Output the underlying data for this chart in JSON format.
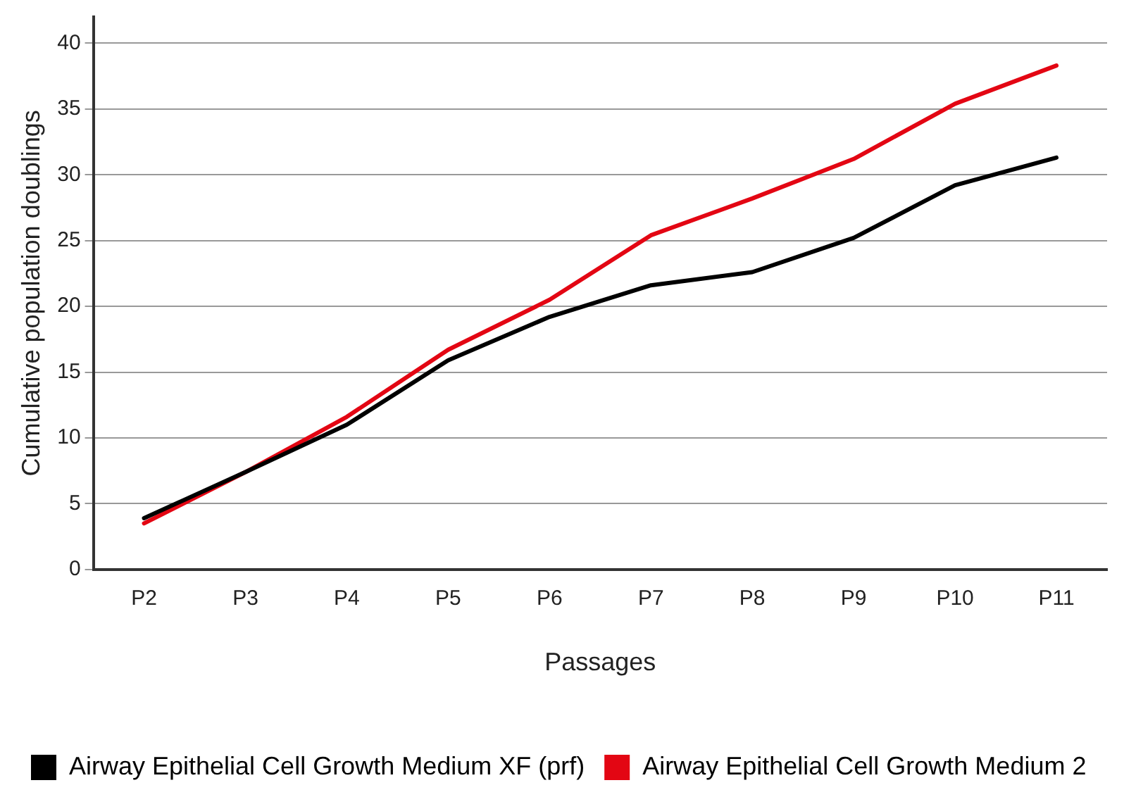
{
  "chart_data": {
    "type": "line",
    "xlabel": "Passages",
    "ylabel": "Cumulative population doublings",
    "categories": [
      "P2",
      "P3",
      "P4",
      "P5",
      "P6",
      "P7",
      "P8",
      "P9",
      "P10",
      "P11"
    ],
    "series": [
      {
        "name": "Airway Epithelial Cell Growth Medium XF (prf)",
        "color": "#000000",
        "values": [
          3.9,
          7.4,
          11,
          15.9,
          19.2,
          21.6,
          22.6,
          25.2,
          29.2,
          31.3
        ]
      },
      {
        "name": "Airway Epithelial Cell Growth Medium 2",
        "color": "#e30613",
        "values": [
          3.5,
          7.4,
          11.6,
          16.7,
          20.5,
          25.4,
          28.2,
          31.2,
          35.4,
          38.3
        ]
      }
    ],
    "ylim": [
      0,
      42
    ],
    "yticks": [
      0,
      5,
      10,
      15,
      20,
      25,
      30,
      35,
      40
    ],
    "grid": "y",
    "legend": "bottom",
    "marker": "none",
    "line_style": "solid"
  }
}
